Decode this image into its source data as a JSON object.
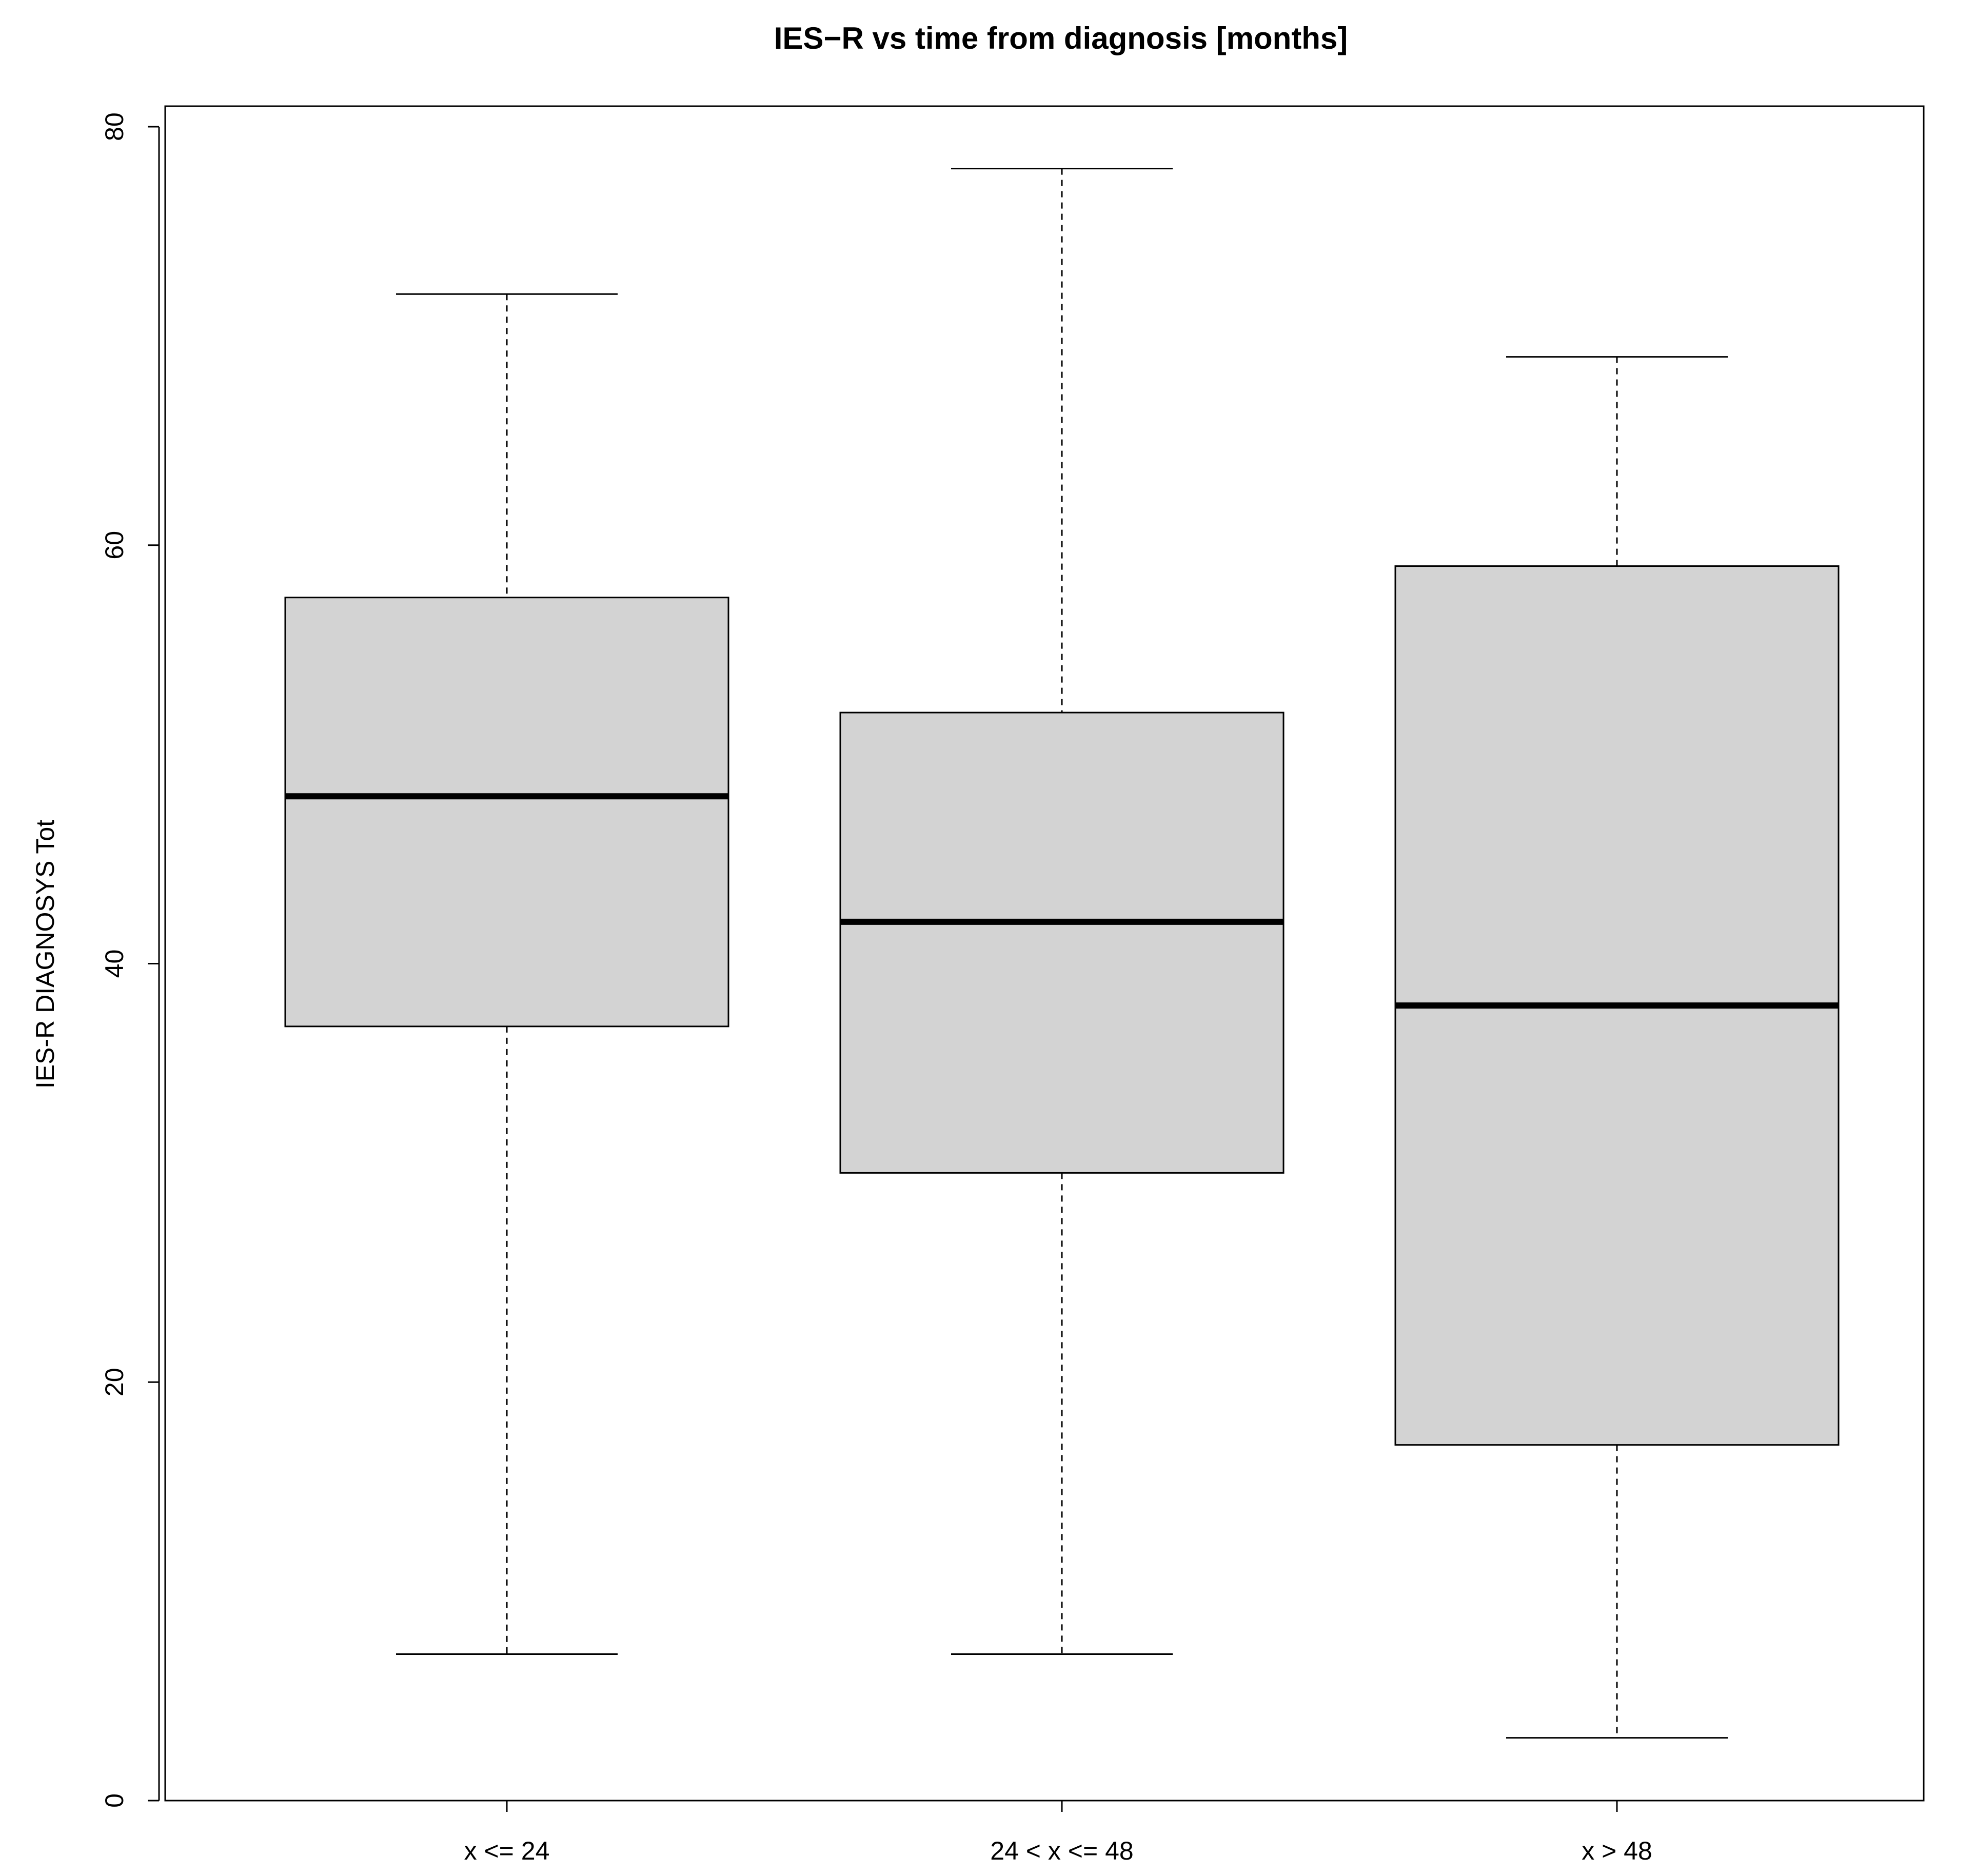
{
  "chart_data": {
    "type": "boxplot",
    "title": "IES−R vs time from diagnosis [months]",
    "xlabel": "",
    "ylabel": "IES-R DIAGNOSYS Tot",
    "ylim": [
      0,
      80
    ],
    "yticks": [
      0,
      20,
      40,
      60,
      80
    ],
    "grid": false,
    "box_fill": "#d3d3d3",
    "line_color": "#000000",
    "categories": [
      "x <= 24",
      "24 < x <= 48",
      "x > 48"
    ],
    "boxes": [
      {
        "category": "x <= 24",
        "whisker_low": 7,
        "q1": 37,
        "median": 48,
        "q3": 57.5,
        "whisker_high": 72
      },
      {
        "category": "24 < x <= 48",
        "whisker_low": 7,
        "q1": 30,
        "median": 42,
        "q3": 52,
        "whisker_high": 78
      },
      {
        "category": "x > 48",
        "whisker_low": 3,
        "q1": 17,
        "median": 38,
        "q3": 59,
        "whisker_high": 69
      }
    ]
  }
}
